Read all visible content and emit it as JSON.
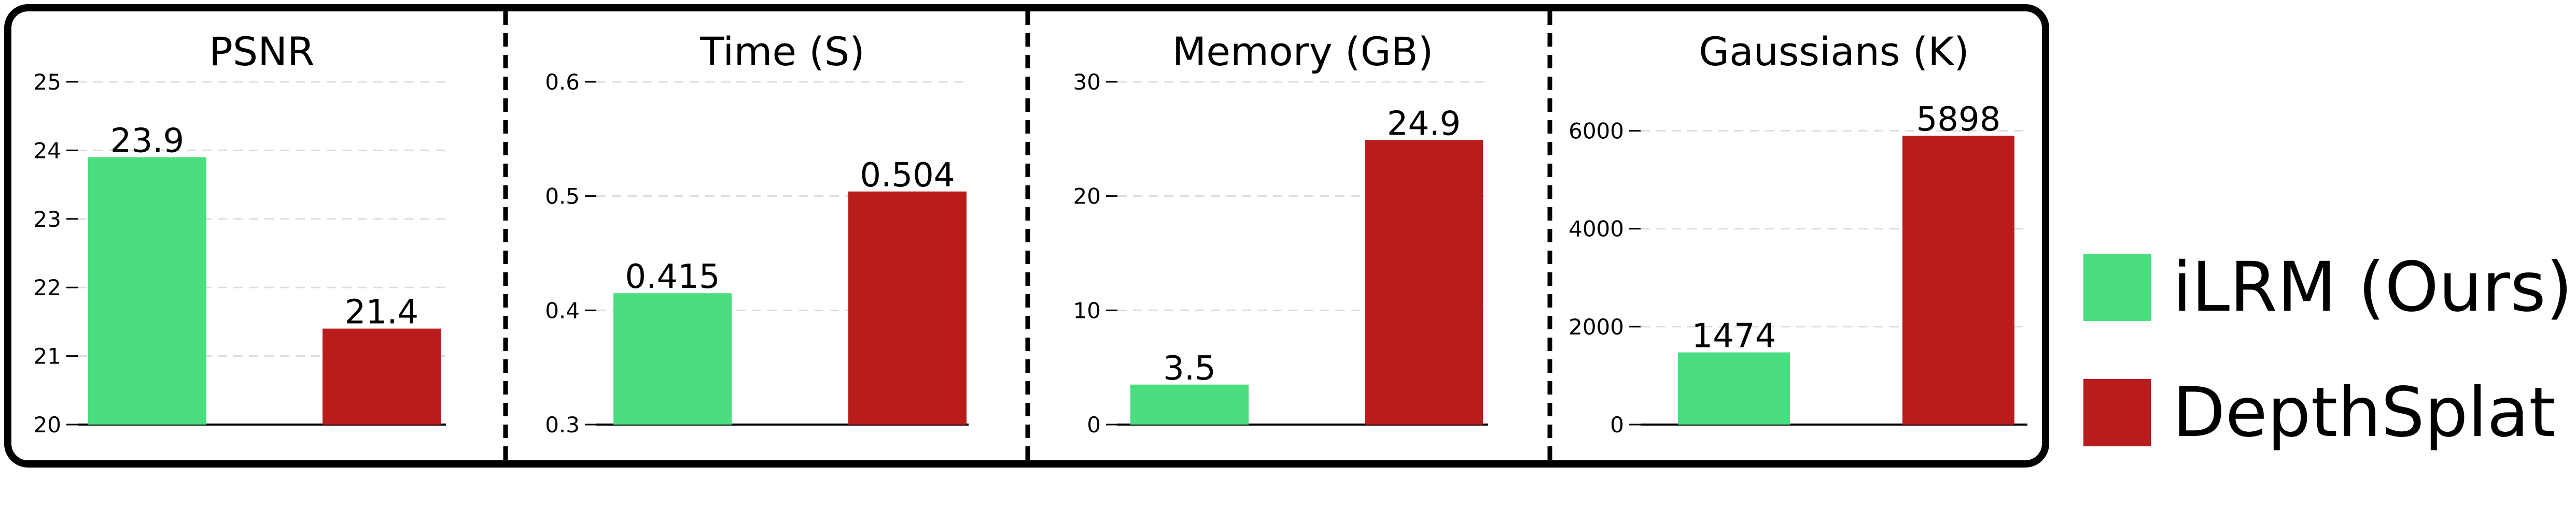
{
  "colors": {
    "ilrm": "#4ade80",
    "depthsplat": "#b91c1c",
    "grid": "#dddddd",
    "axis": "#000000"
  },
  "legend": [
    {
      "name": "iLRM (Ours)",
      "color": "#4ade80"
    },
    {
      "name": "DepthSplat",
      "color": "#b91c1c"
    }
  ],
  "chart_data": [
    {
      "type": "bar",
      "title": "PSNR",
      "series_names": [
        "iLRM (Ours)",
        "DepthSplat"
      ],
      "values": [
        23.9,
        21.4
      ],
      "labels": [
        "23.9",
        "21.4"
      ],
      "ylim": [
        20,
        25
      ],
      "yticks": [
        20,
        21,
        22,
        23,
        24,
        25
      ],
      "ytick_labels": [
        "20",
        "21",
        "22",
        "23",
        "24",
        "25"
      ]
    },
    {
      "type": "bar",
      "title": "Time (S)",
      "series_names": [
        "iLRM (Ours)",
        "DepthSplat"
      ],
      "values": [
        0.415,
        0.504
      ],
      "labels": [
        "0.415",
        "0.504"
      ],
      "ylim": [
        0.3,
        0.6
      ],
      "yticks": [
        0.3,
        0.4,
        0.5,
        0.6
      ],
      "ytick_labels": [
        "0.3",
        "0.4",
        "0.5",
        "0.6"
      ]
    },
    {
      "type": "bar",
      "title": "Memory (GB)",
      "series_names": [
        "iLRM (Ours)",
        "DepthSplat"
      ],
      "values": [
        3.5,
        24.9
      ],
      "labels": [
        "3.5",
        "24.9"
      ],
      "ylim": [
        0,
        30
      ],
      "yticks": [
        0,
        10,
        20,
        30
      ],
      "ytick_labels": [
        "0",
        "10",
        "20",
        "30"
      ]
    },
    {
      "type": "bar",
      "title": "Gaussians (K)",
      "series_names": [
        "iLRM (Ours)",
        "DepthSplat"
      ],
      "values": [
        1474,
        5898
      ],
      "labels": [
        "1474",
        "5898"
      ],
      "ylim": [
        0,
        7000
      ],
      "yticks": [
        0,
        2000,
        4000,
        6000
      ],
      "ytick_labels": [
        "0",
        "2000",
        "4000",
        "6000"
      ]
    }
  ]
}
